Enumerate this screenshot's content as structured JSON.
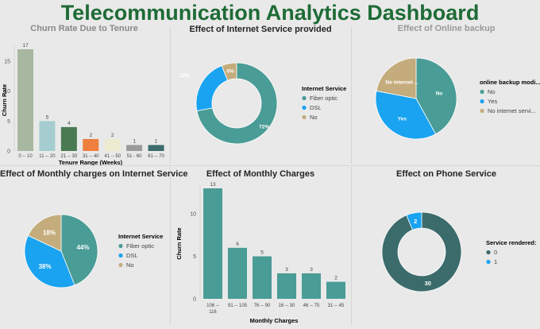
{
  "dashboard": {
    "title": "Telecommunication  Analytics Dashboard"
  },
  "colors": {
    "teal": "#4a9c96",
    "blue": "#1aa3f0",
    "tan": "#c4ac7c",
    "darkteal": "#3b6b6b"
  },
  "chart_data": [
    {
      "id": "tenure",
      "type": "bar",
      "title": "Churn Rate Due to Tenure",
      "xlabel": "Tenure Range (Weeks)",
      "ylabel": "Churn Rate",
      "categories": [
        "0 -- 10",
        "11 -- 20",
        "21 -- 30",
        "31 -- 40",
        "41 -- 50",
        "51 - 60",
        "61 -- 70"
      ],
      "values": [
        17,
        5,
        4,
        2,
        2,
        1,
        1
      ],
      "bar_colors": [
        "#a8b8a0",
        "#a5cdd0",
        "#4a7a52",
        "#ee7f3e",
        "#ecebd0",
        "#9a9a9a",
        "#3b6b6b"
      ],
      "yticks": [
        0,
        5,
        10,
        15
      ],
      "ylim": [
        0,
        17
      ]
    },
    {
      "id": "internet",
      "type": "pie",
      "title": "Effect of Internet Service provided",
      "legend_title": "Internet Service",
      "labels": [
        "Fiber optic",
        "DSL",
        "No"
      ],
      "values": [
        72,
        22,
        6
      ],
      "data_labels": [
        "72%",
        "22%",
        "6%"
      ],
      "colors": [
        "#4a9c96",
        "#1aa3f0",
        "#c4ac7c"
      ]
    },
    {
      "id": "backup",
      "type": "pie",
      "title": "Effect of Online backup",
      "legend_title": "online backup modi...",
      "labels": [
        "No",
        "Yes",
        "No internet servi..."
      ],
      "values": [
        42,
        36,
        22
      ],
      "data_labels": [
        "No",
        "Yes",
        "No internet ..."
      ],
      "colors": [
        "#4a9c96",
        "#1aa3f0",
        "#c4ac7c"
      ]
    },
    {
      "id": "monthly_internet",
      "type": "pie",
      "title": "Effect of Monthly charges on Internet Service",
      "legend_title": "Internet Service",
      "labels": [
        "Fiber optic",
        "DSL",
        "No"
      ],
      "values": [
        44,
        38,
        18
      ],
      "data_labels": [
        "44%",
        "38%",
        "18%"
      ],
      "colors": [
        "#4a9c96",
        "#1aa3f0",
        "#c4ac7c"
      ]
    },
    {
      "id": "monthly",
      "type": "bar",
      "title": "Effect of Monthly Charges",
      "xlabel": "Monthly Charges",
      "ylabel": "Churn Rate",
      "categories": [
        "106 --\n116",
        "91 -- 105",
        "76 -- 90",
        "16 -- 30",
        "46 -- 75",
        "31 -- 45"
      ],
      "values": [
        13,
        6,
        5,
        3,
        3,
        2
      ],
      "bar_colors": [
        "#4a9c96",
        "#4a9c96",
        "#4a9c96",
        "#4a9c96",
        "#4a9c96",
        "#4a9c96"
      ],
      "yticks": [
        0,
        5,
        10
      ],
      "ylim": [
        0,
        13
      ]
    },
    {
      "id": "phone",
      "type": "pie",
      "title": "Effect on Phone Service",
      "legend_title": "Service rendered:",
      "labels": [
        "0",
        "1"
      ],
      "values": [
        30,
        2
      ],
      "data_labels": [
        "30",
        "2"
      ],
      "colors": [
        "#3b6b6b",
        "#1aa3f0"
      ]
    }
  ]
}
